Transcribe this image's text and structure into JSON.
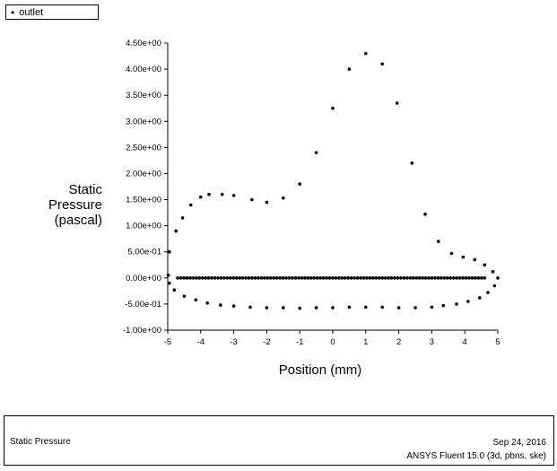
{
  "legend": {
    "marker": "•",
    "label": "outlet"
  },
  "chart_data": {
    "type": "scatter",
    "title": "",
    "xlabel": "Position (mm)",
    "ylabel_lines": [
      "Static",
      "Pressure",
      "(pascal)"
    ],
    "xlim": [
      -5,
      5
    ],
    "ylim": [
      -1.0,
      4.5
    ],
    "x_ticks": [
      -5,
      -4,
      -3,
      -2,
      -1,
      0,
      1,
      2,
      3,
      4,
      5
    ],
    "x_tick_labels": [
      "-5",
      "-4",
      "-3",
      "-2",
      "-1",
      "0",
      "1",
      "2",
      "3",
      "4",
      "5"
    ],
    "y_ticks": [
      -1.0,
      -0.5,
      0.0,
      0.5,
      1.0,
      1.5,
      2.0,
      2.5,
      3.0,
      3.5,
      4.0,
      4.5
    ],
    "y_tick_labels": [
      "-1.00e+00",
      "-5.00e-01",
      "0.00e+00",
      "5.00e-01",
      "1.00e+00",
      "1.50e+00",
      "2.00e+00",
      "2.50e+00",
      "3.00e+00",
      "3.50e+00",
      "4.00e+00",
      "4.50e+00"
    ],
    "grid": false,
    "marker_color": "#000000",
    "series": [
      {
        "name": "outlet",
        "points": [
          [
            -4.95,
            0.5
          ],
          [
            -4.75,
            0.9
          ],
          [
            -4.55,
            1.15
          ],
          [
            -4.3,
            1.4
          ],
          [
            -4.0,
            1.55
          ],
          [
            -3.75,
            1.6
          ],
          [
            -3.35,
            1.6
          ],
          [
            -3.0,
            1.58
          ],
          [
            -2.45,
            1.5
          ],
          [
            -2.0,
            1.45
          ],
          [
            -1.5,
            1.53
          ],
          [
            -1.0,
            1.8
          ],
          [
            -0.5,
            2.4
          ],
          [
            0.0,
            3.25
          ],
          [
            0.5,
            4.0
          ],
          [
            1.0,
            4.3
          ],
          [
            1.5,
            4.1
          ],
          [
            1.95,
            3.35
          ],
          [
            2.4,
            2.2
          ],
          [
            2.8,
            1.22
          ],
          [
            3.2,
            0.7
          ],
          [
            3.6,
            0.47
          ],
          [
            3.95,
            0.4
          ],
          [
            4.3,
            0.35
          ],
          [
            4.6,
            0.25
          ],
          [
            4.85,
            0.12
          ],
          [
            5.0,
            0.0
          ],
          [
            4.9,
            -0.15
          ],
          [
            4.7,
            -0.28
          ],
          [
            4.45,
            -0.38
          ],
          [
            4.1,
            -0.45
          ],
          [
            3.75,
            -0.5
          ],
          [
            3.35,
            -0.53
          ],
          [
            3.0,
            -0.56
          ],
          [
            2.5,
            -0.57
          ],
          [
            2.0,
            -0.57
          ],
          [
            1.5,
            -0.56
          ],
          [
            1.0,
            -0.56
          ],
          [
            0.5,
            -0.56
          ],
          [
            0.0,
            -0.57
          ],
          [
            -0.5,
            -0.57
          ],
          [
            -1.0,
            -0.58
          ],
          [
            -1.5,
            -0.57
          ],
          [
            -2.0,
            -0.57
          ],
          [
            -2.5,
            -0.56
          ],
          [
            -3.0,
            -0.54
          ],
          [
            -3.4,
            -0.52
          ],
          [
            -3.8,
            -0.48
          ],
          [
            -4.15,
            -0.42
          ],
          [
            -4.5,
            -0.35
          ],
          [
            -4.8,
            -0.23
          ],
          [
            -4.95,
            -0.1
          ],
          [
            -4.98,
            0.05
          ]
        ],
        "baseline": {
          "y": 0.0,
          "x_start": -4.7,
          "x_end": 4.6,
          "count": 100
        }
      }
    ]
  },
  "footer": {
    "left": "Static Pressure",
    "date": "Sep 24, 2016",
    "software": "ANSYS Fluent 15.0 (3d, pbns, ske)"
  }
}
